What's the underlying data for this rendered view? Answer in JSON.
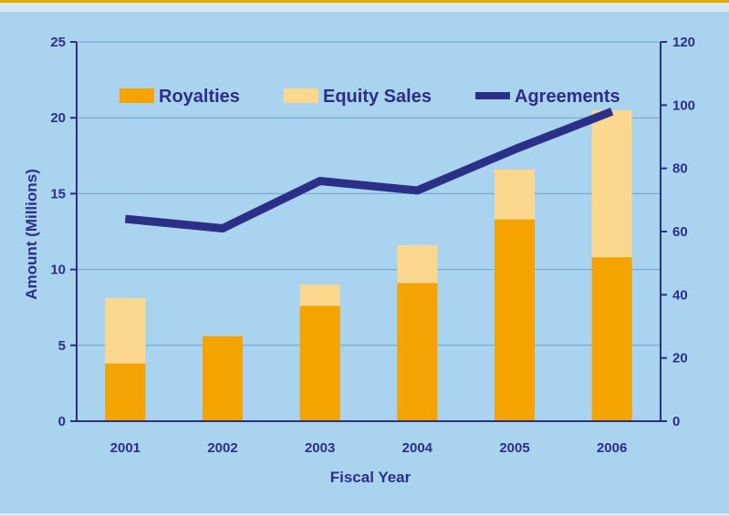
{
  "chart_data": {
    "type": "bar",
    "stacked": true,
    "categories": [
      "2001",
      "2002",
      "2003",
      "2004",
      "2005",
      "2006"
    ],
    "series": [
      {
        "name": "Royalties",
        "axis": "left",
        "values": [
          3.8,
          5.6,
          7.6,
          9.1,
          13.3,
          10.8
        ]
      },
      {
        "name": "Equity Sales",
        "axis": "left",
        "values": [
          4.3,
          0,
          1.4,
          2.5,
          3.3,
          9.7
        ]
      },
      {
        "name": "Agreements",
        "axis": "right",
        "kind": "line",
        "values": [
          64,
          61,
          76,
          73,
          86,
          98
        ]
      }
    ],
    "xlabel": "Fiscal Year",
    "ylabel": "Amount (Millions)",
    "ylim": [
      0,
      25
    ],
    "y2lim": [
      0,
      120
    ],
    "yticks": [
      0,
      5,
      10,
      15,
      20,
      25
    ],
    "y2ticks": [
      0,
      20,
      40,
      60,
      80,
      100,
      120
    ],
    "grid": true,
    "legend_position": "top",
    "colors": {
      "royalties": "#f5a300",
      "equity_sales": "#fcd88e",
      "agreements": "#2b2f87",
      "axis_text": "#2b2f87",
      "plot_bg": "#a9d3ef",
      "gridline": "#6fa3c8"
    }
  }
}
